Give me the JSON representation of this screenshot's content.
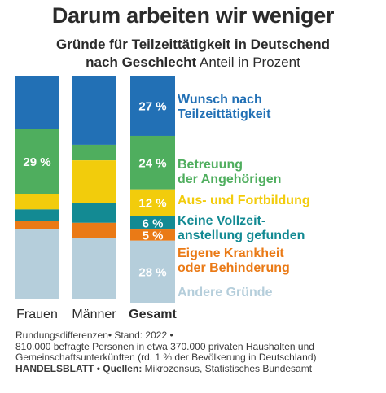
{
  "title": "Darum arbeiten wir weniger",
  "subtitle": {
    "line1": "Gründe für Teilzeittätigkeit in Deutschend",
    "line2_bold": "nach Geschlecht",
    "line2_rest": " Anteil in Prozent"
  },
  "footer": {
    "line1": "Rundungsdifferenzen• Stand: 2022 •",
    "line2": "810.000 befragte Personen in etwa 370.000 privaten Haushalten und",
    "line3": "Gemeinschaftsunterkünften (rd. 1 % der Bevölkerung in Deutschland)",
    "source_bold": "HANDELSBLATT • Quellen:",
    "source_rest": " Mikrozensus, Statistisches Bundesamt"
  },
  "chart_data": {
    "type": "bar",
    "stacked": true,
    "ylim": [
      0,
      100
    ],
    "categories": [
      "Frauen",
      "Männer",
      "Gesamt"
    ],
    "bold_categories": [
      "Gesamt"
    ],
    "series": [
      {
        "name": "Wunsch nach Teilzeittätigkeit",
        "label_lines": [
          "Wunsch nach",
          "Teilzeittätigkeit"
        ],
        "color": "#2270b5",
        "values": [
          24,
          31,
          27
        ],
        "labels": [
          "",
          "",
          "27 %"
        ]
      },
      {
        "name": "Betreuung der Angehörigen",
        "label_lines": [
          "Betreuung",
          "der Angehörigen"
        ],
        "color": "#4fae5e",
        "values": [
          29,
          7,
          24
        ],
        "labels": [
          "29 %",
          "",
          "24 %"
        ]
      },
      {
        "name": "Aus- und Fortbildung",
        "label_lines": [
          "Aus- und Fortbildung"
        ],
        "color": "#f2cc0c",
        "values": [
          7,
          19,
          12
        ],
        "labels": [
          "",
          "",
          "12 %"
        ]
      },
      {
        "name": "Keine Vollzeitanstellung gefunden",
        "label_lines": [
          "Keine Vollzeit-",
          "anstellung gefunden"
        ],
        "color": "#138a93",
        "values": [
          5,
          9,
          6
        ],
        "labels": [
          "",
          "",
          "6 %"
        ]
      },
      {
        "name": "Eigene Krankheit oder Behinderung",
        "label_lines": [
          "Eigene Krankheit",
          "oder Behinderung"
        ],
        "color": "#ea7a16",
        "values": [
          4,
          7,
          5
        ],
        "labels": [
          "",
          "",
          "5 %"
        ]
      },
      {
        "name": "Andere Gründe",
        "label_lines": [
          "Andere Gründe"
        ],
        "color": "#b5cedb",
        "values": [
          31,
          27,
          28
        ],
        "labels": [
          "",
          "",
          "28 %"
        ]
      }
    ]
  }
}
